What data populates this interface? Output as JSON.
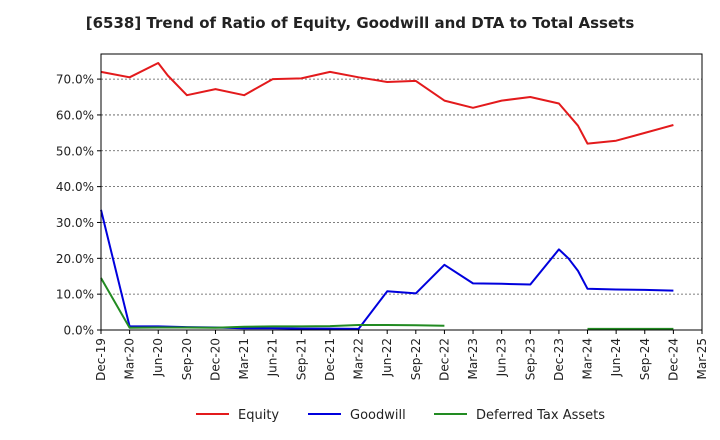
{
  "chart_data": {
    "type": "line",
    "title": "[6538]  Trend of Ratio of Equity, Goodwill and DTA to Total Assets",
    "xlabel": "",
    "ylabel": "",
    "ylim": [
      0,
      77
    ],
    "y_ticks": [
      0,
      10,
      20,
      30,
      40,
      50,
      60,
      70
    ],
    "y_tick_labels": [
      "0.0%",
      "10.0%",
      "20.0%",
      "30.0%",
      "40.0%",
      "50.0%",
      "60.0%",
      "70.0%"
    ],
    "grid": "horizontal dashed",
    "legend_position": "bottom",
    "x_tick_labels": [
      "Dec-19",
      "Mar-20",
      "Jun-20",
      "Sep-20",
      "Dec-20",
      "Mar-21",
      "Jun-21",
      "Sep-21",
      "Dec-21",
      "Mar-22",
      "Jun-22",
      "Sep-22",
      "Dec-22",
      "Mar-23",
      "Jun-23",
      "Sep-23",
      "Dec-23",
      "Mar-24",
      "Jun-24",
      "Sep-24",
      "Dec-24",
      "Mar-25"
    ],
    "series": [
      {
        "name": "Equity",
        "color": "#e31a1c",
        "points": [
          {
            "x": "Dec-19",
            "y": 72.0
          },
          {
            "x": "Mar-20",
            "y": 70.5
          },
          {
            "x": "Jun-20",
            "y": 74.5
          },
          {
            "x": "Jul-20",
            "y": 71.0
          },
          {
            "x": "Sep-20",
            "y": 65.5
          },
          {
            "x": "Dec-20",
            "y": 67.2
          },
          {
            "x": "Mar-21",
            "y": 65.5
          },
          {
            "x": "Jun-21",
            "y": 70.0
          },
          {
            "x": "Sep-21",
            "y": 70.2
          },
          {
            "x": "Dec-21",
            "y": 72.0
          },
          {
            "x": "Mar-22",
            "y": 70.5
          },
          {
            "x": "Jun-22",
            "y": 69.2
          },
          {
            "x": "Sep-22",
            "y": 69.5
          },
          {
            "x": "Dec-22",
            "y": 64.0
          },
          {
            "x": "Mar-23",
            "y": 62.0
          },
          {
            "x": "Jun-23",
            "y": 64.0
          },
          {
            "x": "Sep-23",
            "y": 65.0
          },
          {
            "x": "Dec-23",
            "y": 63.2
          },
          {
            "x": "Feb-24",
            "y": 57.0
          },
          {
            "x": "Mar-24",
            "y": 52.0
          },
          {
            "x": "Jun-24",
            "y": 52.8
          },
          {
            "x": "Sep-24",
            "y": 55.0
          },
          {
            "x": "Dec-24",
            "y": 57.2
          }
        ]
      },
      {
        "name": "Goodwill",
        "color": "#0000dd",
        "points": [
          {
            "x": "Dec-19",
            "y": 33.5
          },
          {
            "x": "Mar-20",
            "y": 1.0
          },
          {
            "x": "Jun-20",
            "y": 1.0
          },
          {
            "x": "Sep-20",
            "y": 0.8
          },
          {
            "x": "Dec-20",
            "y": 0.7
          },
          {
            "x": "Mar-21",
            "y": 0.5
          },
          {
            "x": "Jun-21",
            "y": 0.5
          },
          {
            "x": "Sep-21",
            "y": 0.4
          },
          {
            "x": "Dec-21",
            "y": 0.4
          },
          {
            "x": "Mar-22",
            "y": 0.3
          },
          {
            "x": "Jun-22",
            "y": 10.8
          },
          {
            "x": "Sep-22",
            "y": 10.2
          },
          {
            "x": "Dec-22",
            "y": 18.2
          },
          {
            "x": "Mar-23",
            "y": 13.0
          },
          {
            "x": "Jun-23",
            "y": 12.9
          },
          {
            "x": "Sep-23",
            "y": 12.7
          },
          {
            "x": "Dec-23",
            "y": 22.5
          },
          {
            "x": "Jan-24",
            "y": 20.0
          },
          {
            "x": "Feb-24",
            "y": 16.5
          },
          {
            "x": "Mar-24",
            "y": 11.5
          },
          {
            "x": "Jun-24",
            "y": 11.3
          },
          {
            "x": "Sep-24",
            "y": 11.2
          },
          {
            "x": "Dec-24",
            "y": 11.0
          }
        ]
      },
      {
        "name": "Deferred Tax Assets",
        "color": "#228b22",
        "segments": [
          [
            {
              "x": "Dec-19",
              "y": 14.5
            },
            {
              "x": "Mar-20",
              "y": 0.6
            },
            {
              "x": "Jun-20",
              "y": 0.7
            },
            {
              "x": "Sep-20",
              "y": 0.7
            },
            {
              "x": "Dec-20",
              "y": 0.6
            },
            {
              "x": "Mar-21",
              "y": 0.9
            },
            {
              "x": "Jun-21",
              "y": 1.0
            },
            {
              "x": "Sep-21",
              "y": 1.0
            },
            {
              "x": "Dec-21",
              "y": 1.1
            },
            {
              "x": "Mar-22",
              "y": 1.4
            },
            {
              "x": "Jun-22",
              "y": 1.4
            },
            {
              "x": "Sep-22",
              "y": 1.3
            },
            {
              "x": "Dec-22",
              "y": 1.2
            }
          ],
          [
            {
              "x": "Mar-24",
              "y": 0.3
            },
            {
              "x": "Jun-24",
              "y": 0.3
            },
            {
              "x": "Sep-24",
              "y": 0.3
            },
            {
              "x": "Dec-24",
              "y": 0.3
            }
          ]
        ]
      }
    ]
  }
}
